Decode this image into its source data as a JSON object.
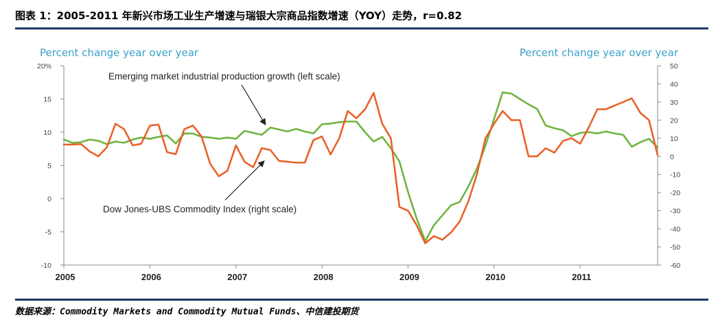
{
  "figure": {
    "title": "图表 1：2005-2011 年新兴市场工业生产增速与瑞银大宗商品指数增速（YOY）走势，r=0.82",
    "source": "数据来源：Commodity Markets and Commodity Mutual Funds、中信建投期货"
  },
  "colors": {
    "green": "#6fb43f",
    "orange": "#e8622a",
    "axis_title": "#3aa0c8",
    "rule": "#1f3864"
  },
  "chart_data": {
    "type": "line",
    "left_axis_title": "Percent change year over year",
    "right_axis_title": "Percent change year over year",
    "left_ylim": [
      -10,
      20
    ],
    "right_ylim": [
      -60,
      50
    ],
    "left_ticks": [
      "20%",
      "15",
      "10",
      "5",
      "0",
      "-5",
      "-10"
    ],
    "left_tick_values": [
      20,
      15,
      10,
      5,
      0,
      -5,
      -10
    ],
    "right_ticks": [
      "50",
      "40",
      "30",
      "20",
      "10",
      "0",
      "-10",
      "-20",
      "-30",
      "-40",
      "-50",
      "-60"
    ],
    "right_tick_values": [
      50,
      40,
      30,
      20,
      10,
      0,
      -10,
      -20,
      -30,
      -40,
      -50,
      -60
    ],
    "x_ticks": [
      "2005",
      "2006",
      "2007",
      "2008",
      "2009",
      "2010",
      "2011"
    ],
    "x_tick_values": [
      2005,
      2006,
      2007,
      2008,
      2009,
      2010,
      2011
    ],
    "xlim": [
      2005,
      2011.9
    ],
    "annotations": [
      {
        "text": "Emerging market industrial production growth (left scale)",
        "series": "em"
      },
      {
        "text": "Dow Jones-UBS Commodity Index (right scale)",
        "series": "djubs"
      }
    ],
    "series": [
      {
        "id": "em",
        "axis": "left",
        "color": "#6fb43f",
        "x": [
          2005.0,
          2005.1,
          2005.2,
          2005.3,
          2005.4,
          2005.5,
          2005.6,
          2005.7,
          2005.8,
          2005.9,
          2006.0,
          2006.1,
          2006.2,
          2006.3,
          2006.4,
          2006.5,
          2006.6,
          2006.7,
          2006.8,
          2006.9,
          2007.0,
          2007.1,
          2007.2,
          2007.3,
          2007.4,
          2007.5,
          2007.6,
          2007.7,
          2007.8,
          2007.9,
          2008.0,
          2008.1,
          2008.2,
          2008.3,
          2008.4,
          2008.5,
          2008.6,
          2008.7,
          2008.8,
          2008.9,
          2009.0,
          2009.1,
          2009.2,
          2009.3,
          2009.4,
          2009.5,
          2009.6,
          2009.7,
          2009.8,
          2009.9,
          2010.0,
          2010.1,
          2010.2,
          2010.3,
          2010.4,
          2010.5,
          2010.6,
          2010.7,
          2010.8,
          2010.9,
          2011.0,
          2011.1,
          2011.2,
          2011.3,
          2011.4,
          2011.5,
          2011.6,
          2011.7,
          2011.8,
          2011.9
        ],
        "y": [
          8.9,
          8.4,
          8.5,
          8.9,
          8.7,
          8.2,
          8.6,
          8.4,
          8.9,
          9.2,
          9.0,
          9.3,
          9.5,
          8.3,
          9.8,
          9.8,
          9.3,
          9.2,
          9.0,
          9.2,
          9.0,
          10.2,
          9.9,
          9.6,
          10.7,
          10.4,
          10.1,
          10.5,
          10.1,
          9.8,
          11.2,
          11.3,
          11.5,
          11.6,
          11.6,
          10.0,
          8.6,
          9.3,
          7.6,
          5.6,
          1.0,
          -3.0,
          -6.4,
          -4.0,
          -2.5,
          -1.0,
          -0.5,
          1.8,
          4.5,
          8.0,
          12.0,
          16.0,
          15.8,
          15.0,
          14.2,
          13.5,
          11.0,
          10.6,
          10.3,
          9.4,
          9.9,
          10.0,
          9.8,
          10.1,
          9.8,
          9.6,
          7.8,
          8.5,
          9.0,
          7.7
        ]
      },
      {
        "id": "djubs",
        "axis": "right",
        "color": "#e8622a",
        "x": [
          2005.0,
          2005.1,
          2005.2,
          2005.3,
          2005.4,
          2005.5,
          2005.6,
          2005.7,
          2005.8,
          2005.9,
          2006.0,
          2006.1,
          2006.2,
          2006.3,
          2006.4,
          2006.5,
          2006.6,
          2006.7,
          2006.8,
          2006.9,
          2007.0,
          2007.1,
          2007.2,
          2007.3,
          2007.4,
          2007.5,
          2007.6,
          2007.7,
          2007.8,
          2007.9,
          2008.0,
          2008.1,
          2008.2,
          2008.3,
          2008.4,
          2008.5,
          2008.6,
          2008.7,
          2008.8,
          2008.9,
          2009.0,
          2009.1,
          2009.2,
          2009.3,
          2009.4,
          2009.5,
          2009.6,
          2009.7,
          2009.8,
          2009.9,
          2010.0,
          2010.1,
          2010.2,
          2010.3,
          2010.4,
          2010.5,
          2010.6,
          2010.7,
          2010.8,
          2010.9,
          2011.0,
          2011.1,
          2011.2,
          2011.3,
          2011.4,
          2011.5,
          2011.6,
          2011.7,
          2011.8,
          2011.9
        ],
        "y": [
          6.5,
          6.5,
          6.8,
          2.7,
          0,
          5.0,
          18.0,
          15.0,
          6.0,
          7.0,
          17.0,
          17.5,
          2.3,
          1.2,
          15.0,
          17.0,
          11.0,
          -4.0,
          -11.0,
          -8.0,
          6.0,
          -3.0,
          -6.0,
          4.5,
          3.5,
          -2.5,
          -3.0,
          -3.5,
          -3.5,
          9.0,
          11.0,
          1.0,
          10.0,
          25.0,
          21.0,
          26.0,
          35.0,
          18.0,
          10.0,
          -28.0,
          -30.0,
          -38.0,
          -48.0,
          -44.0,
          -46.0,
          -42.0,
          -36.0,
          -25.0,
          -10.0,
          10.0,
          18.0,
          25.0,
          20.0,
          20.0,
          0,
          0,
          4.5,
          2.0,
          8.5,
          10.0,
          7.0,
          16.0,
          26.0,
          26.0,
          28.0,
          30.0,
          32.0,
          24.0,
          20.0,
          0.7
        ]
      }
    ]
  }
}
